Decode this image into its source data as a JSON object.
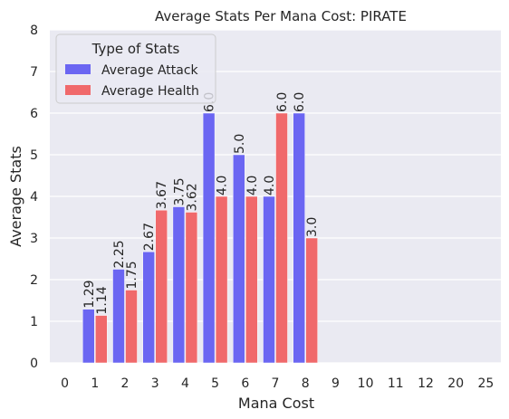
{
  "chart_data": {
    "type": "bar",
    "title": "Average Stats Per Mana Cost: PIRATE",
    "xlabel": "Mana Cost",
    "ylabel": "Average Stats",
    "ylim": [
      0,
      8
    ],
    "yticks": [
      0,
      1,
      2,
      3,
      4,
      5,
      6,
      7,
      8
    ],
    "categories": [
      "0",
      "1",
      "2",
      "3",
      "4",
      "5",
      "6",
      "7",
      "8",
      "9",
      "10",
      "11",
      "12",
      "20",
      "25"
    ],
    "series": [
      {
        "name": "Average Attack",
        "color": "#6b66f2",
        "values": [
          null,
          1.29,
          2.25,
          2.67,
          3.75,
          6.0,
          5.0,
          4.0,
          6.0,
          null,
          null,
          null,
          null,
          null,
          null
        ],
        "labels": [
          "",
          "1.29",
          "2.25",
          "2.67",
          "3.75",
          "6.0",
          "5.0",
          "4.0",
          "6.0",
          "",
          "",
          "",
          "",
          "",
          ""
        ]
      },
      {
        "name": "Average Health",
        "color": "#f0696b",
        "values": [
          null,
          1.14,
          1.75,
          3.67,
          3.62,
          4.0,
          4.0,
          6.0,
          3.0,
          null,
          null,
          null,
          null,
          null,
          null
        ],
        "labels": [
          "",
          "1.14",
          "1.75",
          "3.67",
          "3.62",
          "4.0",
          "4.0",
          "6.0",
          "3.0",
          "",
          "",
          "",
          "",
          "",
          ""
        ]
      }
    ],
    "legend": {
      "title": "Type of Stats",
      "placement": "top-left"
    },
    "grid": true,
    "background_color": "#eaeaf2"
  }
}
